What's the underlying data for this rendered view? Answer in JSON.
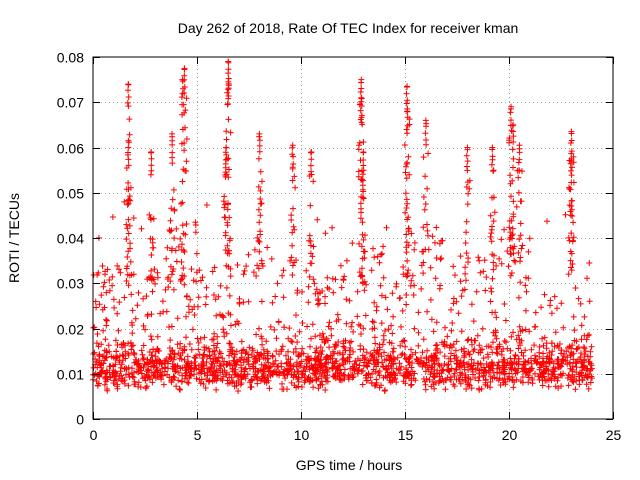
{
  "chart_data": {
    "type": "scatter",
    "title": "Day 262 of 2018, Rate Of TEC Index for receiver kman",
    "xlabel": "GPS time / hours",
    "ylabel": "ROTI / TECUs",
    "xlim": [
      0,
      25
    ],
    "ylim": [
      0,
      0.08
    ],
    "x_ticks": [
      "0",
      "5",
      "10",
      "15",
      "20",
      "25"
    ],
    "y_ticks": [
      "0",
      "0.01",
      "0.02",
      "0.03",
      "0.04",
      "0.05",
      "0.06",
      "0.07",
      "0.08"
    ],
    "x_tick_values": [
      0,
      5,
      10,
      15,
      20,
      25
    ],
    "y_tick_values": [
      0,
      0.01,
      0.02,
      0.03,
      0.04,
      0.05,
      0.06,
      0.07,
      0.08
    ],
    "grid": true,
    "marker": "+",
    "series": [
      {
        "name": "ROTI",
        "color": "#ff0000",
        "approx_points": 9000,
        "x_range": [
          0,
          24
        ],
        "baseline_range": [
          0.004,
          0.03
        ],
        "peaks": [
          {
            "x": 1.7,
            "y": 0.074
          },
          {
            "x": 1.7,
            "y": 0.0615
          },
          {
            "x": 2.8,
            "y": 0.059
          },
          {
            "x": 3.8,
            "y": 0.063
          },
          {
            "x": 4.3,
            "y": 0.075
          },
          {
            "x": 4.4,
            "y": 0.0775
          },
          {
            "x": 6.5,
            "y": 0.079
          },
          {
            "x": 6.5,
            "y": 0.0745
          },
          {
            "x": 6.4,
            "y": 0.06
          },
          {
            "x": 8.0,
            "y": 0.063
          },
          {
            "x": 9.6,
            "y": 0.0605
          },
          {
            "x": 10.5,
            "y": 0.059
          },
          {
            "x": 12.9,
            "y": 0.075
          },
          {
            "x": 12.9,
            "y": 0.071
          },
          {
            "x": 13.0,
            "y": 0.059
          },
          {
            "x": 15.1,
            "y": 0.0735
          },
          {
            "x": 15.1,
            "y": 0.068
          },
          {
            "x": 16.0,
            "y": 0.066
          },
          {
            "x": 18.0,
            "y": 0.06
          },
          {
            "x": 19.2,
            "y": 0.06
          },
          {
            "x": 20.1,
            "y": 0.069
          },
          {
            "x": 20.2,
            "y": 0.065
          },
          {
            "x": 20.5,
            "y": 0.0605
          },
          {
            "x": 23.0,
            "y": 0.0635
          },
          {
            "x": 23.0,
            "y": 0.0575
          }
        ]
      }
    ]
  }
}
